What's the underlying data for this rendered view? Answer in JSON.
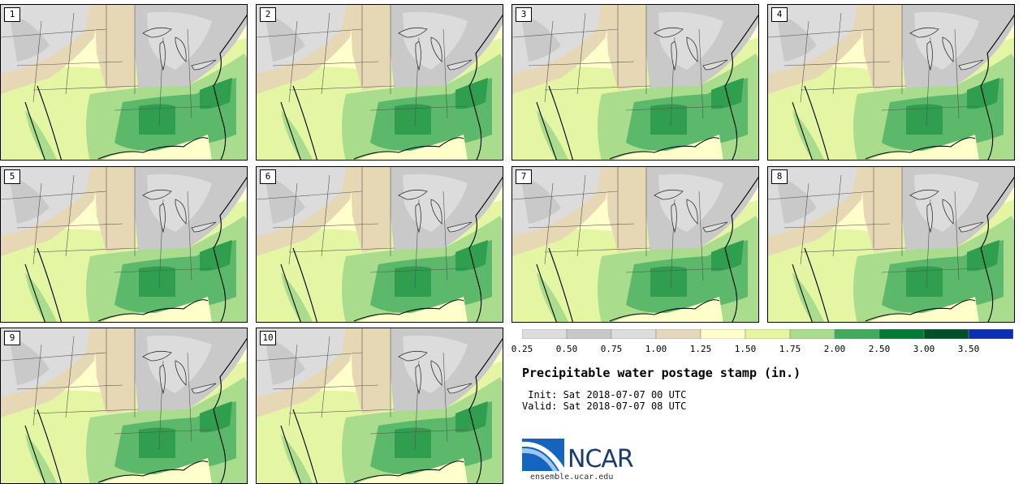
{
  "title": "Precipitable water postage stamp (in.)",
  "init_line": " Init: Sat 2018-07-07 00 UTC",
  "valid_line": "Valid: Sat 2018-07-07 08 UTC",
  "logo_text": "NCAR",
  "url": "ensemble.ucar.edu",
  "members": [
    "1",
    "2",
    "3",
    "4",
    "5",
    "6",
    "7",
    "8",
    "9",
    "10"
  ],
  "colorbar": {
    "ticks": [
      "0.25",
      "0.50",
      "0.75",
      "1.00",
      "1.25",
      "1.50",
      "1.75",
      "2.00",
      "2.50",
      "3.00",
      "3.50"
    ],
    "colors": [
      "#dddddd",
      "#c8c8c8",
      "#dddddd",
      "#e5d7b9",
      "#ffffcc",
      "#e6f5a0",
      "#a9dc8c",
      "#41ab5d",
      "#007a35",
      "#005028",
      "#0a2fb0"
    ]
  },
  "map_colors": {
    "gray": "#c9c9c9",
    "gray_light": "#dcdcdc",
    "tan": "#e6d8b4",
    "yellow": "#ffffcc",
    "lightgreen": "#e4f5a3",
    "green": "#a9dc8c",
    "midgreen": "#5cb86a",
    "darkgreen": "#2f9e4f"
  }
}
